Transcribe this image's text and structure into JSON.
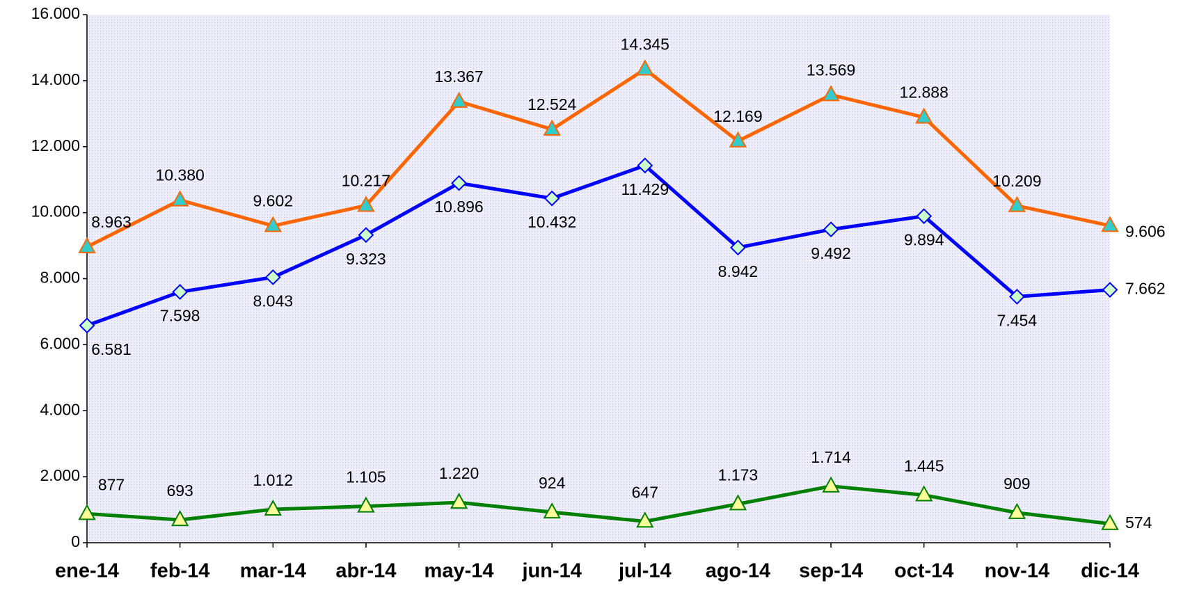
{
  "chart_data": {
    "type": "line",
    "categories": [
      "ene-14",
      "feb-14",
      "mar-14",
      "abr-14",
      "may-14",
      "jun-14",
      "jul-14",
      "ago-14",
      "sep-14",
      "oct-14",
      "nov-14",
      "dic-14"
    ],
    "series": [
      {
        "color": "#ff6600",
        "marker": "triangle",
        "marker_color": "#33cccc",
        "values": [
          8963,
          10380,
          9602,
          10217,
          13367,
          12524,
          14345,
          12169,
          13569,
          12888,
          10209,
          9606
        ],
        "value_labels": [
          "8.963",
          "10.380",
          "9.602",
          "10.217",
          "13.367",
          "12.524",
          "14.345",
          "12.169",
          "13.569",
          "12.888",
          "10.209",
          "9.606"
        ]
      },
      {
        "color": "#0000ff",
        "marker": "diamond",
        "marker_color": "#ccffcc",
        "values": [
          6581,
          7598,
          8043,
          9323,
          10896,
          10432,
          11429,
          8942,
          9492,
          9894,
          7454,
          7662
        ],
        "value_labels": [
          "6.581",
          "7.598",
          "8.043",
          "9.323",
          "10.896",
          "10.432",
          "11.429",
          "8.942",
          "9.492",
          "9.894",
          "7.454",
          "7.662"
        ]
      },
      {
        "color": "#008000",
        "marker": "triangle",
        "marker_color": "#ffff99",
        "values": [
          877,
          693,
          1012,
          1105,
          1220,
          924,
          647,
          1173,
          1714,
          1445,
          909,
          574
        ],
        "value_labels": [
          "877",
          "693",
          "1.012",
          "1.105",
          "1.220",
          "924",
          "647",
          "1.173",
          "1.714",
          "1.445",
          "909",
          "574"
        ]
      }
    ],
    "ylim": [
      0,
      16000
    ],
    "yticks": [
      0,
      {
        "value": 2000,
        "label": "2.000"
      },
      {
        "value": 4000,
        "label": "4.000"
      },
      {
        "value": 6000,
        "label": "6.000"
      },
      {
        "value": 8000,
        "label": "8.000"
      },
      {
        "value": 10000,
        "label": "10.000"
      },
      {
        "value": 12000,
        "label": "12.000"
      },
      {
        "value": 14000,
        "label": "14.000"
      },
      {
        "value": 16000,
        "label": "16.000"
      }
    ],
    "grid": false
  }
}
